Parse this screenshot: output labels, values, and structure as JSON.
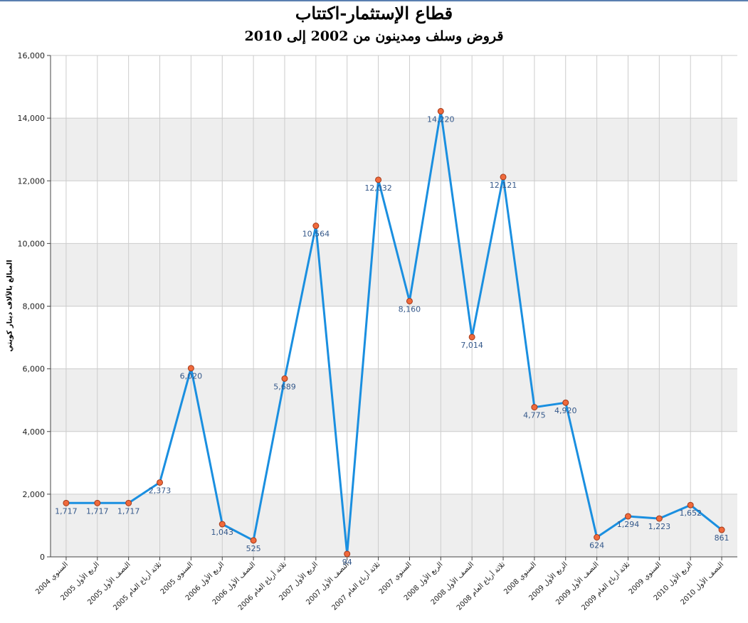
{
  "chart_data": {
    "type": "line",
    "title": "قطاع الإستثمار-اكتتاب",
    "subtitle": "قروض وسلف ومدينون من 2002 إلى 2010",
    "ylabel": "المبالغ بالآلاف دينار كويتي",
    "xlabel": "",
    "ylim": [
      0,
      16000
    ],
    "yticks": [
      "0",
      "2,000",
      "4,000",
      "6,000",
      "8,000",
      "10,000",
      "12,000",
      "14,000",
      "16,000"
    ],
    "grid": true,
    "legend": "none",
    "categories": [
      "السنوي 2004",
      "الربع الأول 2005",
      "النصف الأول 2005",
      "ثلاثة أرباع العام 2005",
      "السنوي 2005",
      "الربع الأول 2006",
      "النصف الأول 2006",
      "ثلاثة أرباع العام 2006",
      "الربع الأول 2007",
      "النصف الأول 2007",
      "ثلاثة أرباع العام 2007",
      "السنوي 2007",
      "الربع الأول 2008",
      "النصف الأول 2008",
      "ثلاثة أرباع العام 2008",
      "السنوي 2008",
      "الربع الأول 2009",
      "النصف الأول 2009",
      "ثلاثة أرباع العام 2009",
      "السنوي 2009",
      "الربع الأول 2010",
      "النصف الأول 2010"
    ],
    "series": [
      {
        "values": [
          1717,
          1717,
          1717,
          2373,
          6020,
          1043,
          525,
          5689,
          10564,
          94,
          12032,
          8160,
          14220,
          7014,
          12121,
          4775,
          4920,
          624,
          1294,
          1223,
          1652,
          861
        ],
        "labels": [
          "1,717",
          "1,717",
          "1,717",
          "2,373",
          "6,020",
          "1,043",
          "525",
          "5,689",
          "10,564",
          "94",
          "12,032",
          "8,160",
          "14,220",
          "7,014",
          "12,121",
          "4,775",
          "4,920",
          "624",
          "1,294",
          "1,223",
          "1,652",
          "861"
        ]
      }
    ],
    "colors": {
      "line": "#1a8fe0",
      "marker_fill": "#f06a3c",
      "marker_stroke": "#a33a1a",
      "band": "#eeeeee",
      "grid": "#cccccc",
      "axis": "#444444",
      "data_label": "#34588a"
    }
  }
}
